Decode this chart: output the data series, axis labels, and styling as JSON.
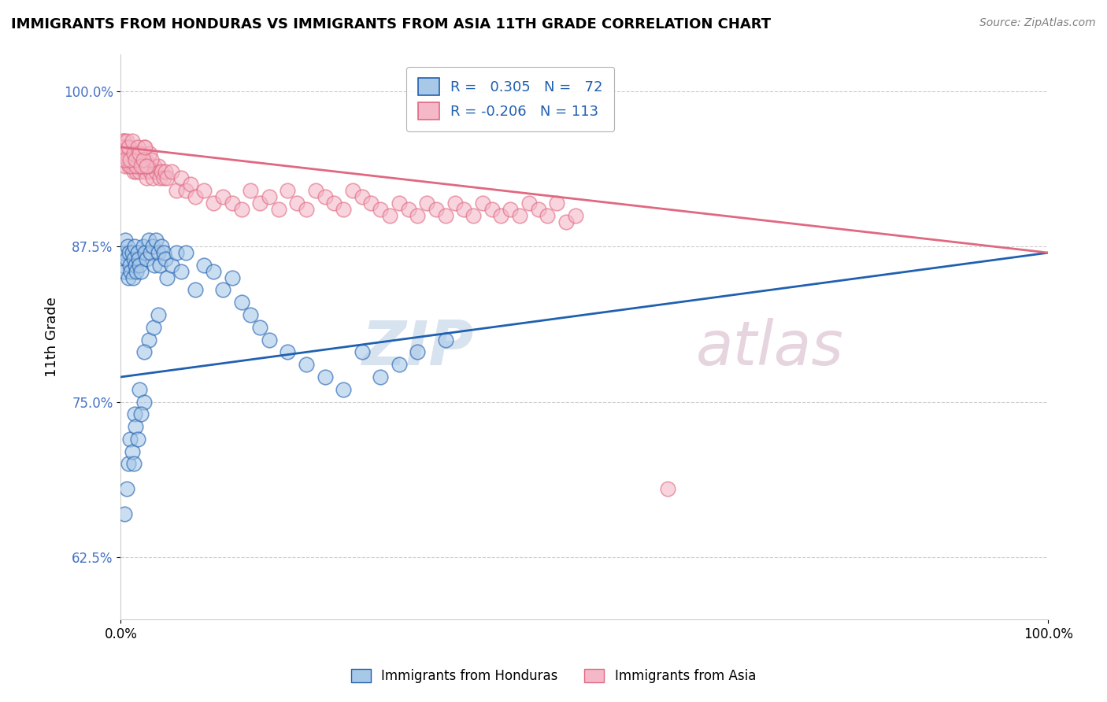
{
  "title": "IMMIGRANTS FROM HONDURAS VS IMMIGRANTS FROM ASIA 11TH GRADE CORRELATION CHART",
  "source": "Source: ZipAtlas.com",
  "ylabel": "11th Grade",
  "ytick_labels": [
    "62.5%",
    "75.0%",
    "87.5%",
    "100.0%"
  ],
  "ytick_values": [
    0.625,
    0.75,
    0.875,
    1.0
  ],
  "xlim": [
    0.0,
    1.0
  ],
  "ylim": [
    0.575,
    1.03
  ],
  "legend_label_bottom": [
    "Immigrants from Honduras",
    "Immigrants from Asia"
  ],
  "blue_scatter_color": "#a8c8e8",
  "pink_scatter_color": "#f4b8c8",
  "blue_line_color": "#2060b0",
  "pink_line_color": "#e06880",
  "watermark": "ZIPatlas",
  "blue_R": 0.305,
  "blue_N": 72,
  "pink_R": -0.206,
  "pink_N": 113,
  "blue_line_x": [
    0.0,
    1.0
  ],
  "blue_line_y": [
    0.77,
    0.87
  ],
  "pink_line_x": [
    0.0,
    1.0
  ],
  "pink_line_y": [
    0.955,
    0.87
  ],
  "blue_points_x": [
    0.002,
    0.003,
    0.004,
    0.005,
    0.006,
    0.007,
    0.008,
    0.009,
    0.01,
    0.011,
    0.012,
    0.013,
    0.014,
    0.015,
    0.016,
    0.017,
    0.018,
    0.019,
    0.02,
    0.022,
    0.024,
    0.026,
    0.028,
    0.03,
    0.032,
    0.034,
    0.036,
    0.038,
    0.04,
    0.042,
    0.044,
    0.046,
    0.048,
    0.05,
    0.055,
    0.06,
    0.065,
    0.07,
    0.08,
    0.09,
    0.1,
    0.11,
    0.12,
    0.13,
    0.14,
    0.15,
    0.16,
    0.18,
    0.2,
    0.22,
    0.24,
    0.26,
    0.28,
    0.3,
    0.32,
    0.35,
    0.03,
    0.035,
    0.04,
    0.025,
    0.015,
    0.02,
    0.025,
    0.01,
    0.008,
    0.006,
    0.004,
    0.012,
    0.016,
    0.022,
    0.018,
    0.014
  ],
  "blue_points_y": [
    0.86,
    0.87,
    0.855,
    0.88,
    0.865,
    0.875,
    0.85,
    0.87,
    0.86,
    0.855,
    0.87,
    0.85,
    0.865,
    0.875,
    0.86,
    0.855,
    0.87,
    0.865,
    0.86,
    0.855,
    0.875,
    0.87,
    0.865,
    0.88,
    0.87,
    0.875,
    0.86,
    0.88,
    0.87,
    0.86,
    0.875,
    0.87,
    0.865,
    0.85,
    0.86,
    0.87,
    0.855,
    0.87,
    0.84,
    0.86,
    0.855,
    0.84,
    0.85,
    0.83,
    0.82,
    0.81,
    0.8,
    0.79,
    0.78,
    0.77,
    0.76,
    0.79,
    0.77,
    0.78,
    0.79,
    0.8,
    0.8,
    0.81,
    0.82,
    0.79,
    0.74,
    0.76,
    0.75,
    0.72,
    0.7,
    0.68,
    0.66,
    0.71,
    0.73,
    0.74,
    0.72,
    0.7
  ],
  "pink_points_x": [
    0.001,
    0.002,
    0.003,
    0.004,
    0.005,
    0.006,
    0.007,
    0.008,
    0.009,
    0.01,
    0.011,
    0.012,
    0.013,
    0.014,
    0.015,
    0.016,
    0.017,
    0.018,
    0.019,
    0.02,
    0.022,
    0.024,
    0.026,
    0.028,
    0.03,
    0.032,
    0.034,
    0.036,
    0.038,
    0.04,
    0.042,
    0.044,
    0.046,
    0.048,
    0.05,
    0.055,
    0.06,
    0.065,
    0.07,
    0.075,
    0.08,
    0.09,
    0.1,
    0.11,
    0.12,
    0.13,
    0.14,
    0.15,
    0.16,
    0.17,
    0.18,
    0.19,
    0.2,
    0.21,
    0.22,
    0.23,
    0.24,
    0.25,
    0.26,
    0.27,
    0.28,
    0.29,
    0.3,
    0.31,
    0.32,
    0.33,
    0.34,
    0.35,
    0.36,
    0.37,
    0.38,
    0.39,
    0.4,
    0.41,
    0.42,
    0.43,
    0.44,
    0.45,
    0.46,
    0.47,
    0.48,
    0.49,
    0.005,
    0.007,
    0.009,
    0.011,
    0.013,
    0.015,
    0.017,
    0.019,
    0.021,
    0.023,
    0.025,
    0.027,
    0.029,
    0.031,
    0.033,
    0.59,
    0.003,
    0.002,
    0.004,
    0.006,
    0.008,
    0.01,
    0.012,
    0.014,
    0.016,
    0.018,
    0.02,
    0.022,
    0.024,
    0.026,
    0.028
  ],
  "pink_points_y": [
    0.955,
    0.945,
    0.96,
    0.95,
    0.94,
    0.955,
    0.945,
    0.95,
    0.94,
    0.955,
    0.945,
    0.95,
    0.94,
    0.935,
    0.945,
    0.94,
    0.935,
    0.945,
    0.94,
    0.935,
    0.945,
    0.94,
    0.935,
    0.93,
    0.94,
    0.935,
    0.93,
    0.94,
    0.935,
    0.94,
    0.93,
    0.935,
    0.93,
    0.935,
    0.93,
    0.935,
    0.92,
    0.93,
    0.92,
    0.925,
    0.915,
    0.92,
    0.91,
    0.915,
    0.91,
    0.905,
    0.92,
    0.91,
    0.915,
    0.905,
    0.92,
    0.91,
    0.905,
    0.92,
    0.915,
    0.91,
    0.905,
    0.92,
    0.915,
    0.91,
    0.905,
    0.9,
    0.91,
    0.905,
    0.9,
    0.91,
    0.905,
    0.9,
    0.91,
    0.905,
    0.9,
    0.91,
    0.905,
    0.9,
    0.905,
    0.9,
    0.91,
    0.905,
    0.9,
    0.91,
    0.895,
    0.9,
    0.95,
    0.945,
    0.955,
    0.94,
    0.95,
    0.945,
    0.94,
    0.95,
    0.945,
    0.94,
    0.955,
    0.945,
    0.94,
    0.95,
    0.945,
    0.68,
    0.96,
    0.955,
    0.945,
    0.96,
    0.955,
    0.945,
    0.96,
    0.95,
    0.945,
    0.955,
    0.95,
    0.94,
    0.945,
    0.955,
    0.94
  ]
}
